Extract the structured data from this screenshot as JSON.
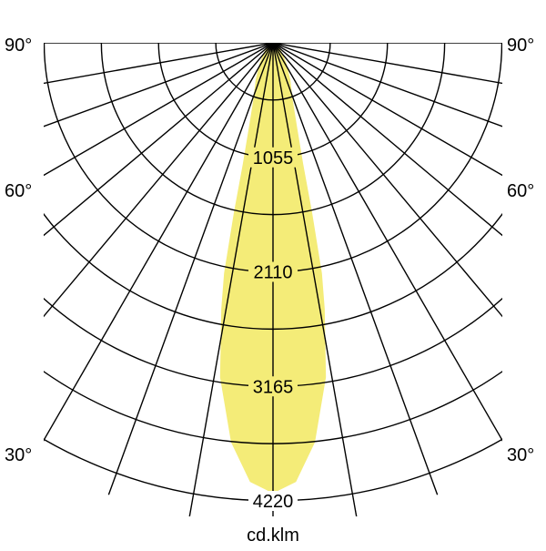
{
  "chart_data": {
    "type": "polar",
    "unit_label": "cd.klm",
    "angle_labels": {
      "left": [
        "90°",
        "60°",
        "30°"
      ],
      "right": [
        "90°",
        "60°",
        "30°"
      ]
    },
    "angle_label_values": [
      90,
      60,
      30
    ],
    "radial_ticks": [
      1055,
      2110,
      3165,
      4220
    ],
    "radial_max": 4220,
    "ring_step": 527.5,
    "angle_step_deg": 10,
    "fill_color": "#f4ec78",
    "series": [
      {
        "angles_deg": [
          0,
          3,
          6,
          9,
          11,
          12,
          13,
          14,
          16,
          19,
          25,
          33,
          45,
          60,
          90
        ],
        "values": [
          4150,
          4050,
          3700,
          3120,
          2500,
          2170,
          1600,
          1150,
          800,
          560,
          380,
          230,
          110,
          40,
          0
        ],
        "symmetric": true
      }
    ]
  }
}
